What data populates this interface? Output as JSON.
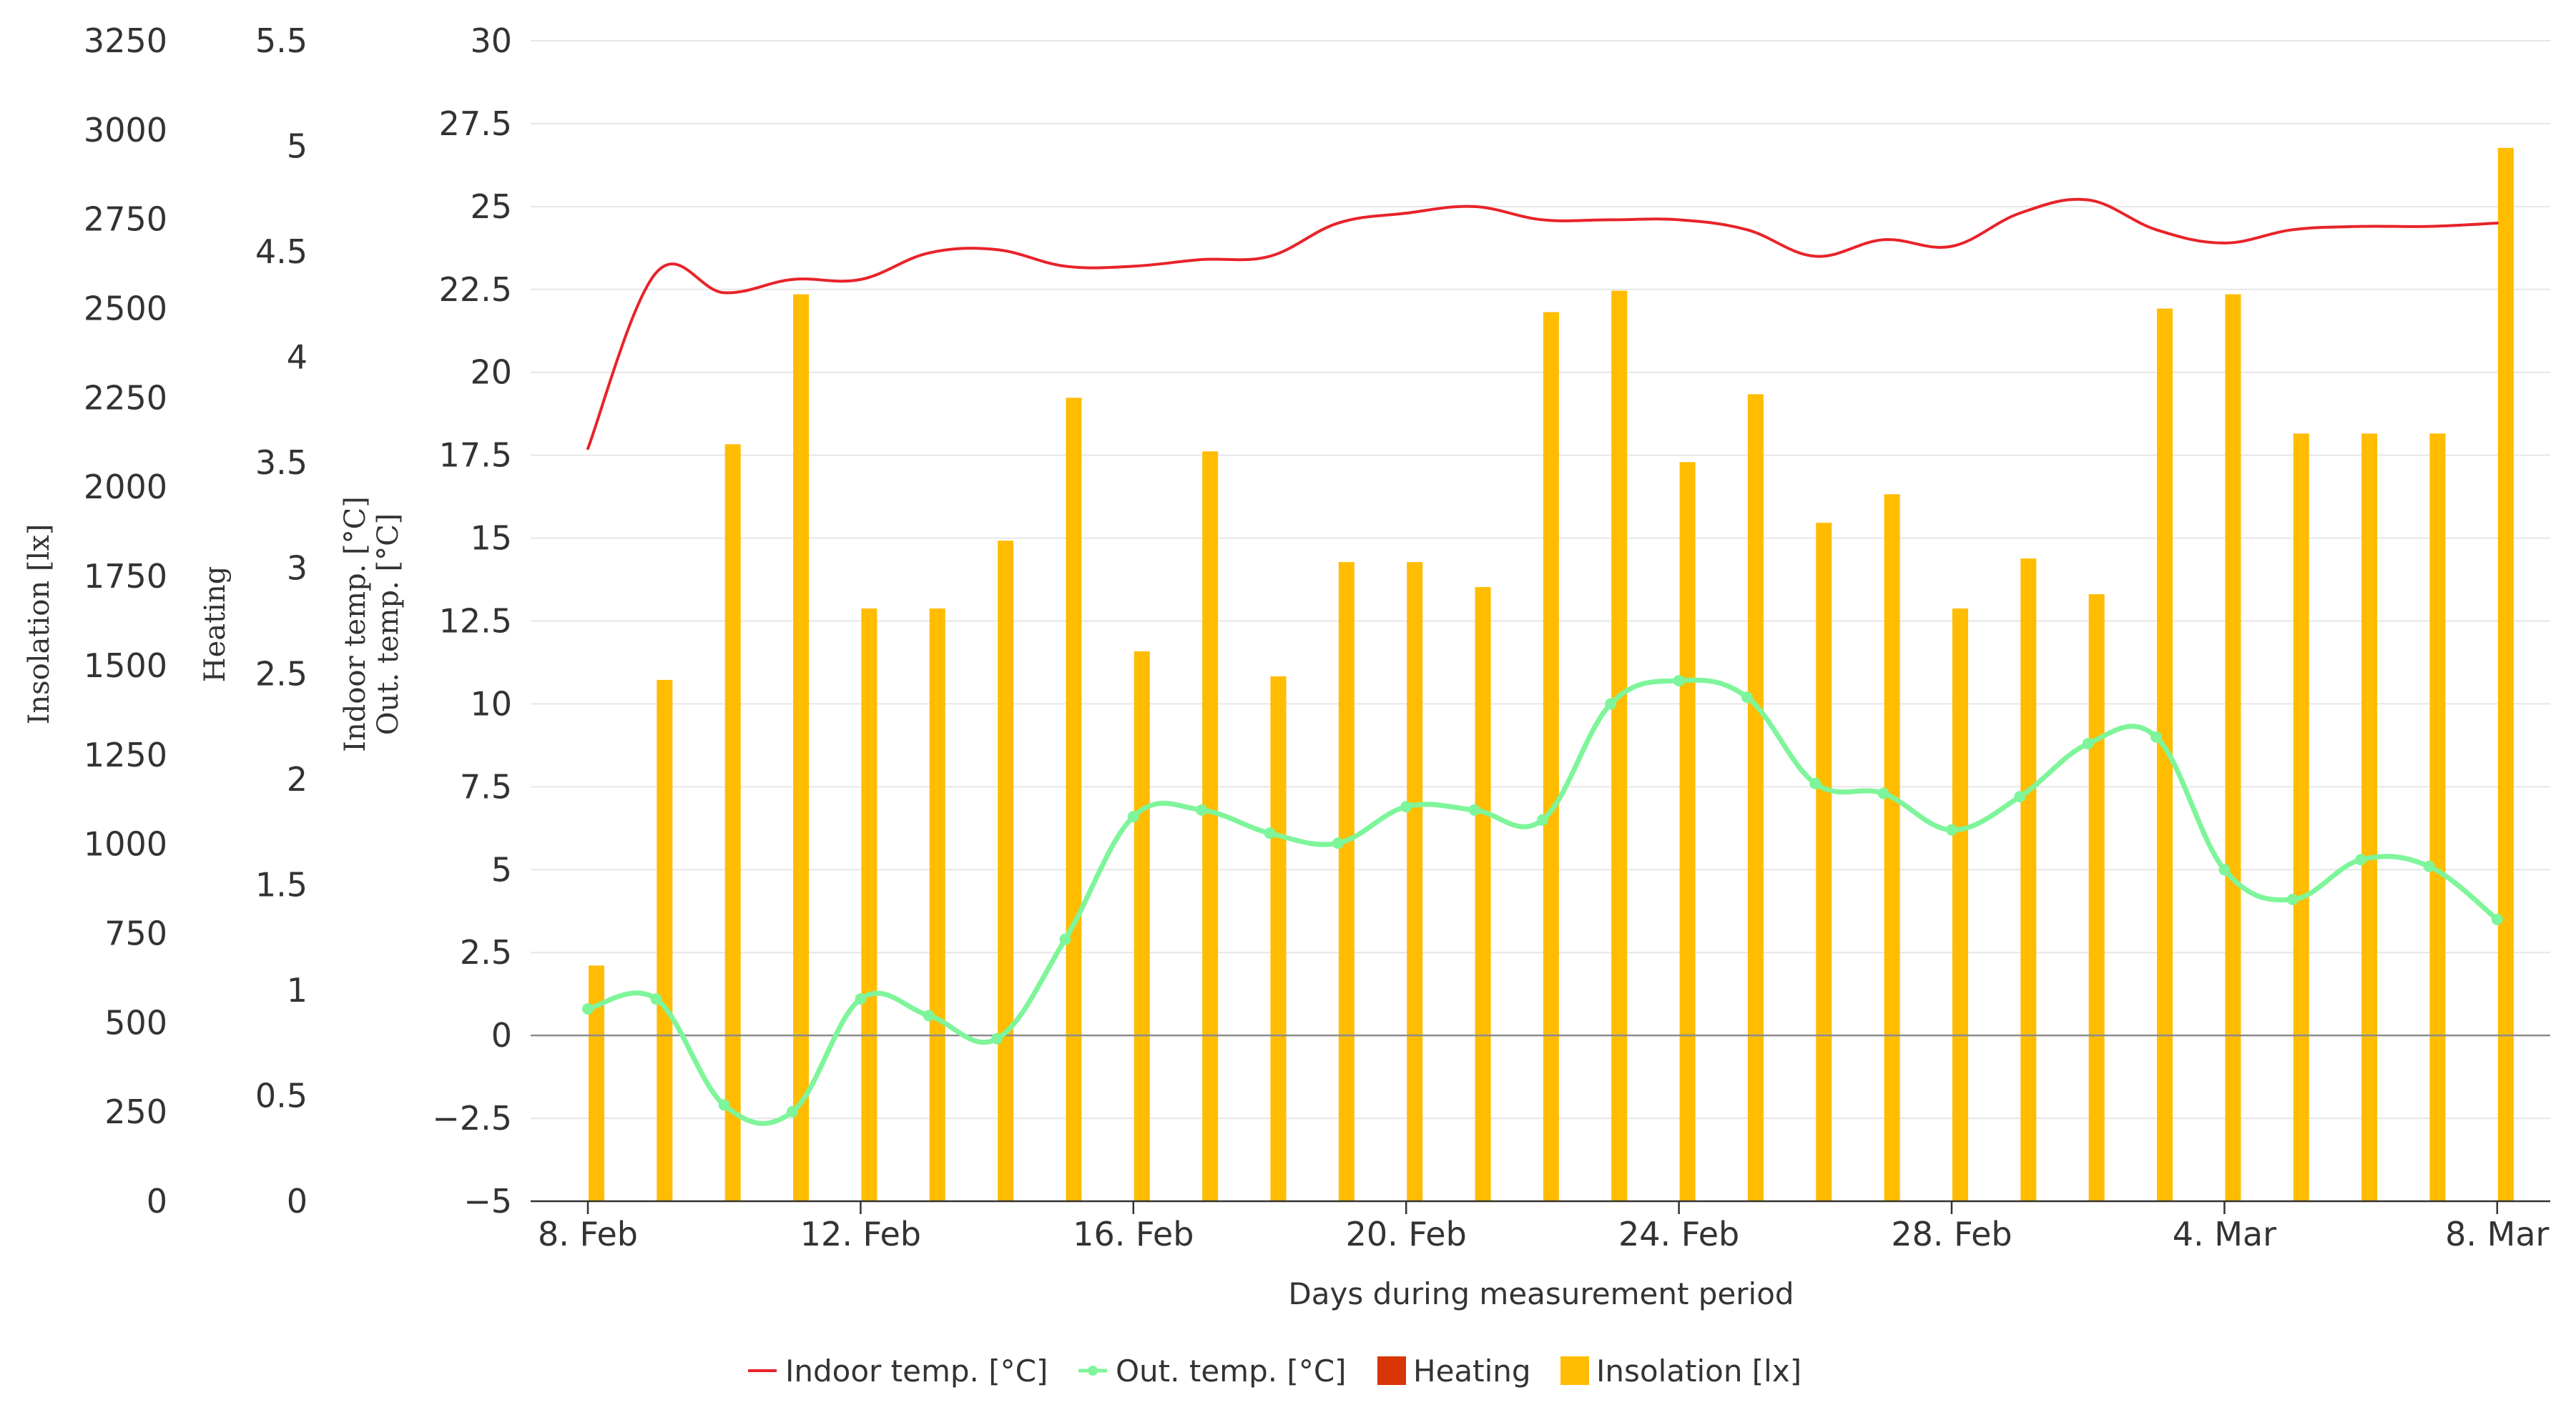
{
  "chart_data": {
    "type": "bar+line",
    "xlabel": "Days during measurement period",
    "x_tick_labels": [
      "8. Feb",
      "12. Feb",
      "16. Feb",
      "20. Feb",
      "24. Feb",
      "28. Feb",
      "4. Mar",
      "8. Mar"
    ],
    "days": [
      "8. Feb",
      "9. Feb",
      "10. Feb",
      "11. Feb",
      "12. Feb",
      "13. Feb",
      "14. Feb",
      "15. Feb",
      "16. Feb",
      "17. Feb",
      "18. Feb",
      "19. Feb",
      "20. Feb",
      "21. Feb",
      "22. Feb",
      "23. Feb",
      "24. Feb",
      "25. Feb",
      "26. Feb",
      "27. Feb",
      "28. Feb",
      "1. Mar",
      "2. Mar",
      "3. Mar",
      "4. Mar",
      "5. Mar",
      "6. Mar",
      "7. Mar",
      "8. Mar"
    ],
    "axes": {
      "insolation": {
        "label": "Insolation [lx]",
        "range": [
          0,
          3250
        ],
        "ticks": [
          "0",
          "250",
          "500",
          "750",
          "1000",
          "1250",
          "1500",
          "1750",
          "2000",
          "2250",
          "2500",
          "2750",
          "3000",
          "3250"
        ]
      },
      "heating": {
        "label": "Heating",
        "range": [
          0,
          5.5
        ],
        "ticks": [
          "0",
          "0.5",
          "1",
          "1.5",
          "2",
          "2.5",
          "3",
          "3.5",
          "4",
          "4.5",
          "5",
          "5.5"
        ]
      },
      "temperature": {
        "label_line1": "Indoor temp. [°C]",
        "label_line2": "Out. temp. [°C]",
        "range": [
          -5,
          30
        ],
        "ticks": [
          "−5",
          "−2.5",
          "0",
          "2.5",
          "5",
          "7.5",
          "10",
          "12.5",
          "15",
          "17.5",
          "20",
          "22.5",
          "25",
          "27.5",
          "30"
        ]
      }
    },
    "series": [
      {
        "name": "Indoor temp. [°C]",
        "type": "line",
        "axis": "temperature",
        "color": "#e8232a",
        "values": [
          17.7,
          23.0,
          22.4,
          22.8,
          22.8,
          23.6,
          23.7,
          23.2,
          23.2,
          23.4,
          23.5,
          24.5,
          24.8,
          25.0,
          24.6,
          24.6,
          24.6,
          24.3,
          23.5,
          24.0,
          23.8,
          24.8,
          25.2,
          24.3,
          23.9,
          24.3,
          24.4,
          24.4,
          24.5
        ]
      },
      {
        "name": "Out. temp. [°C]",
        "type": "line",
        "axis": "temperature",
        "color": "#7ef59a",
        "values": [
          0.8,
          1.1,
          -2.1,
          -2.3,
          1.1,
          0.6,
          -0.1,
          2.9,
          6.6,
          6.8,
          6.1,
          5.8,
          6.9,
          6.8,
          6.5,
          10.0,
          10.7,
          10.2,
          7.6,
          7.3,
          6.2,
          7.2,
          8.8,
          9.0,
          5.0,
          4.1,
          5.3,
          5.1,
          3.5
        ]
      },
      {
        "name": "Heating",
        "type": "bar",
        "axis": "heating",
        "color": "#d93606",
        "values": [
          0,
          0,
          0,
          0,
          0,
          0,
          0,
          0,
          0,
          0,
          0,
          0,
          0,
          0,
          0,
          0,
          0,
          0,
          0,
          0,
          0,
          0,
          0,
          0,
          0,
          0,
          0,
          0,
          0
        ]
      },
      {
        "name": "Insolation [lx]",
        "type": "bar",
        "axis": "insolation",
        "color": "#ffbc00",
        "values": [
          660,
          1460,
          2120,
          2540,
          1660,
          1660,
          1850,
          2250,
          1540,
          2100,
          1470,
          1790,
          1790,
          1720,
          2490,
          2550,
          2070,
          2260,
          1900,
          1980,
          1660,
          1800,
          1700,
          2500,
          2540,
          2150,
          2150,
          2150,
          2950
        ]
      }
    ],
    "legend": {
      "placement": "bottom-center",
      "items": [
        {
          "label": "Indoor temp. [°C]",
          "color": "#e8232a",
          "symbol": "line"
        },
        {
          "label": "Out. temp. [°C]",
          "color": "#7ef59a",
          "symbol": "line-marker"
        },
        {
          "label": "Heating",
          "color": "#d93606",
          "symbol": "square"
        },
        {
          "label": "Insolation [lx]",
          "color": "#ffbc00",
          "symbol": "square"
        }
      ]
    },
    "grid": true
  }
}
